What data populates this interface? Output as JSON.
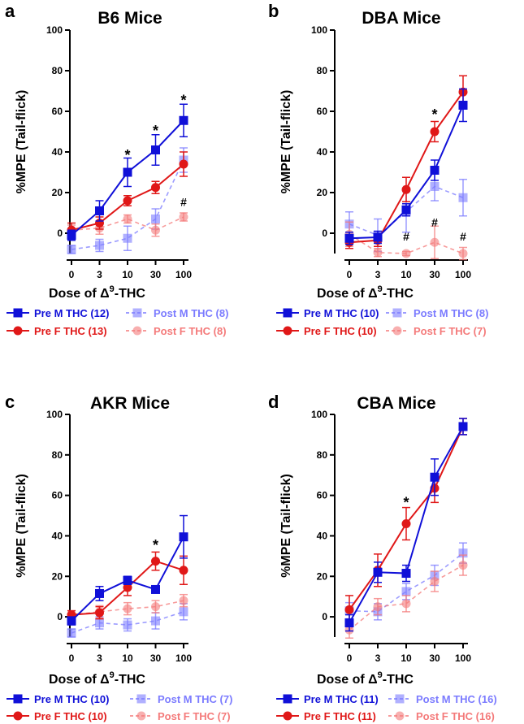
{
  "chart_data": [
    {
      "type": "line",
      "panel": "a",
      "title": "B6 Mice",
      "xlabel_prefix": "Dose of ",
      "xlabel_symbol": "Δ",
      "xlabel_superscript": "9",
      "xlabel_suffix": "-THC",
      "ylabel": "%MPE (Tail-flick)",
      "categories": [
        "0",
        "3",
        "10",
        "30",
        "100"
      ],
      "ylim": [
        -10,
        100
      ],
      "yticks": [
        "0",
        "20",
        "40",
        "60",
        "80",
        "100"
      ],
      "series": [
        {
          "name": "Pre M THC (12)",
          "color": "#1010d8",
          "marker": "square",
          "style": "solid",
          "values": [
            -1,
            11,
            30,
            41,
            55.5
          ],
          "errors": [
            2.5,
            5,
            7,
            7.5,
            8
          ]
        },
        {
          "name": "Pre F THC (13)",
          "color": "#e01818",
          "marker": "circle",
          "style": "solid",
          "values": [
            1.5,
            5,
            16,
            22.5,
            34
          ],
          "errors": [
            3.5,
            3,
            2.5,
            3,
            6
          ]
        },
        {
          "name": "Post M THC (8)",
          "color": "#7b7bff",
          "marker": "square",
          "style": "dashed",
          "values": [
            -8,
            -6,
            -2.5,
            7,
            36
          ],
          "errors": [
            2,
            3,
            6,
            5,
            6
          ]
        },
        {
          "name": "Post F THC (8)",
          "color": "#f47a7a",
          "marker": "circle",
          "style": "dashed",
          "values": [
            1.5,
            2.5,
            7,
            1.5,
            8
          ],
          "errors": [
            2.5,
            3,
            2,
            3,
            2
          ]
        }
      ],
      "annotations": [
        {
          "text": "*",
          "x": "10",
          "y": 40
        },
        {
          "text": "*",
          "x": "30",
          "y": 52
        },
        {
          "text": "*",
          "x": "100",
          "y": 67
        },
        {
          "text": "#",
          "x": "100",
          "y": 15
        }
      ]
    },
    {
      "type": "line",
      "panel": "b",
      "title": "DBA Mice",
      "xlabel_prefix": "Dose of ",
      "xlabel_symbol": "Δ",
      "xlabel_superscript": "9",
      "xlabel_suffix": "-THC",
      "ylabel": "%MPE (Tail-flick)",
      "categories": [
        "0",
        "3",
        "10",
        "30",
        "100"
      ],
      "ylim": [
        -10,
        100
      ],
      "yticks": [
        "0",
        "20",
        "40",
        "60",
        "80",
        "100"
      ],
      "series": [
        {
          "name": "Pre M THC (10)",
          "color": "#1010d8",
          "marker": "square",
          "style": "solid",
          "values": [
            -2.5,
            -2,
            11.5,
            31,
            63
          ],
          "errors": [
            3,
            3,
            3,
            5,
            8
          ]
        },
        {
          "name": "Pre F THC (10)",
          "color": "#e01818",
          "marker": "circle",
          "style": "solid",
          "values": [
            -4.5,
            -3.5,
            21.5,
            50,
            69.5
          ],
          "errors": [
            3,
            3,
            6,
            5,
            8
          ]
        },
        {
          "name": "Post M THC (8)",
          "color": "#7b7bff",
          "marker": "square",
          "style": "dashed",
          "values": [
            4.5,
            -1,
            10.5,
            23,
            17.5
          ],
          "errors": [
            6,
            8,
            10,
            7,
            9
          ]
        },
        {
          "name": "Post F THC (7)",
          "color": "#f47a7a",
          "marker": "circle",
          "style": "dashed",
          "values": [
            -0.5,
            -9.5,
            -10,
            -4.5,
            -10
          ],
          "errors": [
            6,
            2,
            1,
            8,
            3
          ]
        }
      ],
      "annotations": [
        {
          "text": "*",
          "x": "30",
          "y": 60
        },
        {
          "text": "#",
          "x": "10",
          "y": -2
        },
        {
          "text": "#",
          "x": "30",
          "y": 5
        },
        {
          "text": "#",
          "x": "100",
          "y": -2
        }
      ]
    },
    {
      "type": "line",
      "panel": "c",
      "title": "AKR Mice",
      "xlabel_prefix": "Dose of ",
      "xlabel_symbol": "Δ",
      "xlabel_superscript": "9",
      "xlabel_suffix": "-THC",
      "ylabel": "%MPE (Tail-flick)",
      "categories": [
        "0",
        "3",
        "10",
        "30",
        "100"
      ],
      "ylim": [
        -10,
        100
      ],
      "yticks": [
        "0",
        "20",
        "40",
        "60",
        "80",
        "100"
      ],
      "series": [
        {
          "name": "Pre M THC (10)",
          "color": "#1010d8",
          "marker": "square",
          "style": "solid",
          "values": [
            -2,
            11.5,
            18,
            13.5,
            39.5
          ],
          "errors": [
            2,
            3.5,
            2,
            1.5,
            10.5
          ]
        },
        {
          "name": "Pre F THC (10)",
          "color": "#e01818",
          "marker": "circle",
          "style": "solid",
          "values": [
            1,
            2,
            14.5,
            27.5,
            23
          ],
          "errors": [
            2,
            3,
            4,
            4.5,
            7
          ]
        },
        {
          "name": "Post M THC (7)",
          "color": "#7b7bff",
          "marker": "square",
          "style": "dashed",
          "values": [
            -8,
            -3,
            -4,
            -2,
            2.5
          ],
          "errors": [
            2,
            3,
            3,
            4,
            4
          ]
        },
        {
          "name": "Post F THC (7)",
          "color": "#f47a7a",
          "marker": "circle",
          "style": "dashed",
          "values": [
            1,
            2.5,
            4,
            5,
            8
          ],
          "errors": [
            2,
            3,
            3,
            3,
            3
          ]
        }
      ],
      "annotations": [
        {
          "text": "*",
          "x": "30",
          "y": 37
        }
      ]
    },
    {
      "type": "line",
      "panel": "d",
      "title": "CBA Mice",
      "xlabel_prefix": "Dose of ",
      "xlabel_symbol": "Δ",
      "xlabel_superscript": "9",
      "xlabel_suffix": "-THC",
      "ylabel": "%MPE (Tail-flick)",
      "categories": [
        "0",
        "3",
        "10",
        "30",
        "100"
      ],
      "ylim": [
        -10,
        100
      ],
      "yticks": [
        "0",
        "20",
        "40",
        "60",
        "80",
        "100"
      ],
      "series": [
        {
          "name": "Pre M THC (11)",
          "color": "#1010d8",
          "marker": "square",
          "style": "solid",
          "values": [
            -3,
            22,
            21.5,
            69,
            94
          ],
          "errors": [
            4,
            5,
            4,
            9,
            4
          ]
        },
        {
          "name": "Pre F THC (11)",
          "color": "#e01818",
          "marker": "circle",
          "style": "solid",
          "values": [
            3.5,
            23,
            46,
            63.5,
            94
          ],
          "errors": [
            7,
            8,
            8,
            7,
            4
          ]
        },
        {
          "name": "Post M THC (16)",
          "color": "#7b7bff",
          "marker": "square",
          "style": "dashed",
          "values": [
            3,
            2.5,
            12.5,
            20.5,
            31.5
          ],
          "errors": [
            4,
            4,
            4,
            5,
            5
          ]
        },
        {
          "name": "Post F THC (16)",
          "color": "#f47a7a",
          "marker": "circle",
          "style": "dashed",
          "values": [
            -6.5,
            5,
            6.5,
            17.5,
            25.5
          ],
          "errors": [
            4,
            4,
            4,
            5,
            5
          ]
        }
      ],
      "annotations": [
        {
          "text": "*",
          "x": "10",
          "y": 58
        }
      ]
    }
  ]
}
